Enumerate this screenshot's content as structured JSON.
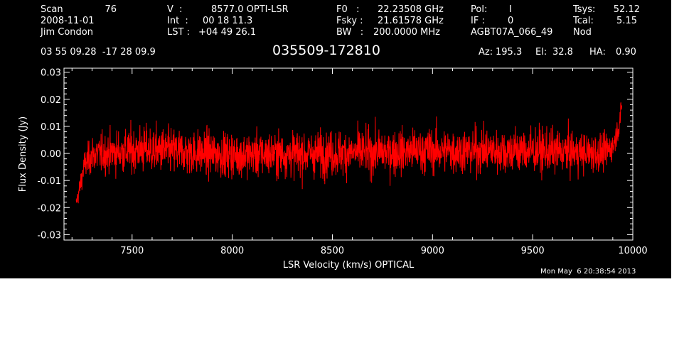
{
  "header": {
    "scan_label": "Scan",
    "scan_value": "76",
    "date": "2008-11-01",
    "observer": "Jim Condon",
    "v_label": "V  :",
    "v_value": "8577.0 OPTI-LSR",
    "int_label": "Int  :",
    "int_value": "00 18 11.3",
    "lst_label": "LST :",
    "lst_value": "+04 49 26.1",
    "f0_label": "F0   :",
    "f0_value": "22.23508 GHz",
    "fsky_label": "Fsky :",
    "fsky_value": "21.61578 GHz",
    "bw_label": "BW   :",
    "bw_value": "200.0000 MHz",
    "pol_label": "Pol:",
    "pol_value": "I",
    "if_label": "IF :",
    "if_value": "0",
    "project": "AGBT07A_066_49",
    "tsys_label": "Tsys:",
    "tsys_value": "52.12",
    "tcal_label": "Tcal:",
    "tcal_value": "5.15",
    "mode": "Nod",
    "coords": "03 55 09.28  -17 28 09.9",
    "source": "035509-172810",
    "az_label": "Az:",
    "az_value": "195.3",
    "el_label": "El:",
    "el_value": "32.8",
    "ha_label": "HA:",
    "ha_value": "0.90",
    "timestamp": "Mon May  6 20:38:54 2013"
  },
  "colors": {
    "background": "#000000",
    "axes": "#ffffff",
    "spectrum": "#ff0000",
    "page": "#ffffff"
  },
  "chart_data": {
    "type": "line",
    "title": "035509-172810",
    "xlabel": "LSR Velocity (km/s) OPTICAL",
    "ylabel": "Flux Density (Jy)",
    "xlim": [
      7160,
      10000
    ],
    "ylim": [
      -0.032,
      0.0315
    ],
    "xticks": [
      {
        "value": 7500,
        "label": "7500"
      },
      {
        "value": 8000,
        "label": "8000"
      },
      {
        "value": 8500,
        "label": "8500"
      },
      {
        "value": 9000,
        "label": "9000"
      },
      {
        "value": 9500,
        "label": "9500"
      },
      {
        "value": 10000,
        "label": "10000"
      }
    ],
    "yticks": [
      {
        "value": -0.03,
        "label": "-0.03"
      },
      {
        "value": -0.02,
        "label": "-0.02"
      },
      {
        "value": -0.01,
        "label": "-0.01"
      },
      {
        "value": 0.0,
        "label": "0.00"
      },
      {
        "value": 0.01,
        "label": "0.01"
      },
      {
        "value": 0.02,
        "label": "0.02"
      },
      {
        "value": 0.03,
        "label": "0.03"
      }
    ],
    "grid": false,
    "legend": "none",
    "series": [
      {
        "x_range": [
          7220,
          9945
        ],
        "baseline": 0.0,
        "noise_rms": 0.005,
        "envelope": [
          {
            "x": 7220,
            "min": -0.022,
            "max": -0.015
          },
          {
            "x": 7240,
            "min": -0.02,
            "max": -0.005
          },
          {
            "x": 7260,
            "min": -0.013,
            "max": 0.004
          },
          {
            "x": 7300,
            "min": -0.012,
            "max": 0.011
          },
          {
            "x": 7550,
            "min": -0.013,
            "max": 0.016
          },
          {
            "x": 8000,
            "min": -0.014,
            "max": 0.013
          },
          {
            "x": 8500,
            "min": -0.014,
            "max": 0.014
          },
          {
            "x": 9000,
            "min": -0.013,
            "max": 0.015
          },
          {
            "x": 9500,
            "min": -0.013,
            "max": 0.015
          },
          {
            "x": 9850,
            "min": -0.012,
            "max": 0.012
          },
          {
            "x": 9900,
            "min": -0.005,
            "max": 0.01
          },
          {
            "x": 9930,
            "min": 0.002,
            "max": 0.018
          },
          {
            "x": 9945,
            "min": 0.012,
            "max": 0.022
          }
        ]
      }
    ]
  }
}
